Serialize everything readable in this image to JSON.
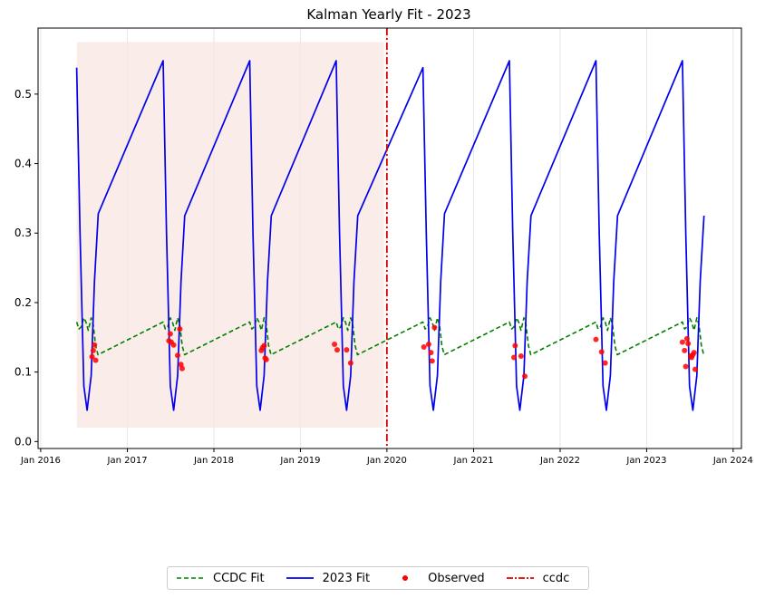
{
  "chart_data": {
    "type": "line",
    "title": "Kalman Yearly Fit - 2023",
    "xlabel": "",
    "ylabel": "",
    "xlim": [
      "2015-12-21",
      "2024-02-05"
    ],
    "ylim": [
      -0.01,
      0.595
    ],
    "yticks": [
      0.0,
      0.1,
      0.2,
      0.3,
      0.4,
      0.5
    ],
    "ytick_labels": [
      "0.0",
      "0.1",
      "0.2",
      "0.3",
      "0.4",
      "0.5"
    ],
    "xticks": [
      "2016-01-01",
      "2017-01-01",
      "2018-01-01",
      "2019-01-01",
      "2020-01-01",
      "2021-01-01",
      "2022-01-01",
      "2023-01-01",
      "2024-01-01"
    ],
    "xtick_labels": [
      "Jan 2016",
      "Jan 2017",
      "Jan 2018",
      "Jan 2019",
      "Jan 2020",
      "Jan 2021",
      "Jan 2022",
      "Jan 2023",
      "Jan 2024"
    ],
    "grid": "vertical",
    "shaded_region": {
      "x": [
        "2016-06-01",
        "2019-12-20"
      ],
      "y": [
        0.02,
        0.575
      ],
      "color": "#f8e7e2"
    },
    "vline": {
      "name": "ccdc",
      "x": "2020-01-01",
      "color": "#dd0000"
    },
    "series": [
      {
        "name": "CCDC Fit",
        "style": "dashed",
        "color": "#008000",
        "x": [
          "2016-06-01",
          "2016-06-10",
          "2016-06-20",
          "2016-07-01",
          "2016-07-10",
          "2016-07-20",
          "2016-08-01",
          "2016-08-10",
          "2016-08-20",
          "2016-08-30",
          "2017-06-01",
          "2017-06-10",
          "2017-06-20",
          "2017-07-01",
          "2017-07-10",
          "2017-07-20",
          "2017-08-01",
          "2017-08-10",
          "2017-08-20",
          "2017-08-30",
          "2018-06-01",
          "2018-06-10",
          "2018-06-20",
          "2018-07-01",
          "2018-07-10",
          "2018-07-20",
          "2018-08-01",
          "2018-08-10",
          "2018-08-20",
          "2018-08-30",
          "2019-06-01",
          "2019-06-10",
          "2019-06-20",
          "2019-07-01",
          "2019-07-10",
          "2019-07-20",
          "2019-08-01",
          "2019-08-10",
          "2019-08-20",
          "2019-08-30",
          "2020-06-01",
          "2020-06-10",
          "2020-06-20",
          "2020-07-01",
          "2020-07-10",
          "2020-07-20",
          "2020-08-01",
          "2020-08-10",
          "2020-08-20",
          "2020-08-30",
          "2021-06-01",
          "2021-06-10",
          "2021-06-20",
          "2021-07-01",
          "2021-07-10",
          "2021-07-20",
          "2021-08-01",
          "2021-08-10",
          "2021-08-20",
          "2021-08-30",
          "2022-06-01",
          "2022-06-10",
          "2022-06-20",
          "2022-07-01",
          "2022-07-10",
          "2022-07-20",
          "2022-08-01",
          "2022-08-10",
          "2022-08-20",
          "2022-08-30",
          "2023-06-01",
          "2023-06-10",
          "2023-06-20",
          "2023-07-01",
          "2023-07-10",
          "2023-07-20",
          "2023-08-01",
          "2023-08-10",
          "2023-08-20",
          "2023-08-30"
        ],
        "y": [
          0.172,
          0.162,
          0.165,
          0.178,
          0.172,
          0.16,
          0.178,
          0.168,
          0.138,
          0.125,
          0.172,
          0.162,
          0.165,
          0.178,
          0.172,
          0.16,
          0.178,
          0.168,
          0.138,
          0.125,
          0.172,
          0.162,
          0.165,
          0.178,
          0.172,
          0.16,
          0.178,
          0.168,
          0.138,
          0.125,
          0.172,
          0.162,
          0.165,
          0.178,
          0.172,
          0.16,
          0.178,
          0.168,
          0.138,
          0.125,
          0.172,
          0.162,
          0.165,
          0.178,
          0.172,
          0.16,
          0.178,
          0.168,
          0.138,
          0.125,
          0.172,
          0.162,
          0.165,
          0.178,
          0.172,
          0.16,
          0.178,
          0.168,
          0.138,
          0.125,
          0.172,
          0.162,
          0.165,
          0.178,
          0.172,
          0.16,
          0.178,
          0.168,
          0.138,
          0.125,
          0.172,
          0.162,
          0.165,
          0.178,
          0.172,
          0.16,
          0.178,
          0.168,
          0.138,
          0.125
        ]
      },
      {
        "name": "2023 Fit",
        "style": "solid",
        "color": "#0000ee",
        "x": [
          "2016-06-01",
          "2016-06-15",
          "2016-07-01",
          "2016-07-15",
          "2016-08-01",
          "2016-08-15",
          "2016-08-31",
          "2017-06-01",
          "2017-06-15",
          "2017-07-01",
          "2017-07-15",
          "2017-08-01",
          "2017-08-15",
          "2017-08-31",
          "2018-06-01",
          "2018-06-15",
          "2018-07-01",
          "2018-07-15",
          "2018-08-01",
          "2018-08-15",
          "2018-08-31",
          "2019-06-01",
          "2019-06-15",
          "2019-07-01",
          "2019-07-15",
          "2019-08-01",
          "2019-08-15",
          "2019-08-31",
          "2020-06-01",
          "2020-06-15",
          "2020-07-01",
          "2020-07-15",
          "2020-08-01",
          "2020-08-15",
          "2020-08-31",
          "2021-06-01",
          "2021-06-15",
          "2021-07-01",
          "2021-07-15",
          "2021-08-01",
          "2021-08-15",
          "2021-08-31",
          "2022-06-01",
          "2022-06-15",
          "2022-07-01",
          "2022-07-15",
          "2022-08-01",
          "2022-08-15",
          "2022-08-31",
          "2023-06-01",
          "2023-06-15",
          "2023-07-01",
          "2023-07-15",
          "2023-08-01",
          "2023-08-15",
          "2023-08-31"
        ],
        "y": [
          0.538,
          0.3,
          0.08,
          0.045,
          0.095,
          0.23,
          0.328,
          0.548,
          0.3,
          0.08,
          0.045,
          0.095,
          0.23,
          0.325,
          0.548,
          0.3,
          0.08,
          0.045,
          0.095,
          0.23,
          0.325,
          0.548,
          0.3,
          0.08,
          0.045,
          0.095,
          0.23,
          0.325,
          0.538,
          0.3,
          0.08,
          0.045,
          0.095,
          0.23,
          0.328,
          0.548,
          0.3,
          0.08,
          0.045,
          0.095,
          0.23,
          0.325,
          0.548,
          0.3,
          0.08,
          0.045,
          0.095,
          0.23,
          0.325,
          0.548,
          0.3,
          0.08,
          0.045,
          0.095,
          0.23,
          0.325
        ]
      }
    ],
    "observed": {
      "name": "Observed",
      "color": "#ff0000",
      "x": [
        "2016-08-05",
        "2016-08-10",
        "2016-08-15",
        "2016-08-20",
        "2017-06-25",
        "2017-07-01",
        "2017-07-05",
        "2017-07-15",
        "2017-08-01",
        "2017-08-10",
        "2017-08-15",
        "2017-08-20",
        "2018-07-20",
        "2018-07-25",
        "2018-08-01",
        "2018-08-05",
        "2018-08-10",
        "2019-05-25",
        "2019-06-05",
        "2019-07-15",
        "2019-08-01",
        "2020-06-05",
        "2020-06-25",
        "2020-07-05",
        "2020-07-10",
        "2020-07-20",
        "2021-06-20",
        "2021-06-25",
        "2021-07-20",
        "2021-08-05",
        "2022-06-01",
        "2022-06-25",
        "2022-07-10",
        "2023-06-01",
        "2023-06-10",
        "2023-06-15",
        "2023-06-20",
        "2023-06-25",
        "2023-07-05",
        "2023-07-10",
        "2023-07-15",
        "2023-07-20",
        "2023-07-25"
      ],
      "y": [
        0.122,
        0.131,
        0.139,
        0.117,
        0.145,
        0.155,
        0.143,
        0.139,
        0.124,
        0.162,
        0.111,
        0.105,
        0.131,
        0.135,
        0.138,
        0.12,
        0.118,
        0.14,
        0.132,
        0.132,
        0.113,
        0.136,
        0.14,
        0.128,
        0.116,
        0.164,
        0.121,
        0.138,
        0.123,
        0.094,
        0.147,
        0.129,
        0.113,
        0.143,
        0.131,
        0.108,
        0.148,
        0.141,
        0.123,
        0.121,
        0.125,
        0.128,
        0.104
      ]
    },
    "legend": {
      "position": "bottom-center",
      "entries": [
        "CCDC Fit",
        "2023 Fit",
        "Observed",
        "ccdc"
      ]
    }
  }
}
